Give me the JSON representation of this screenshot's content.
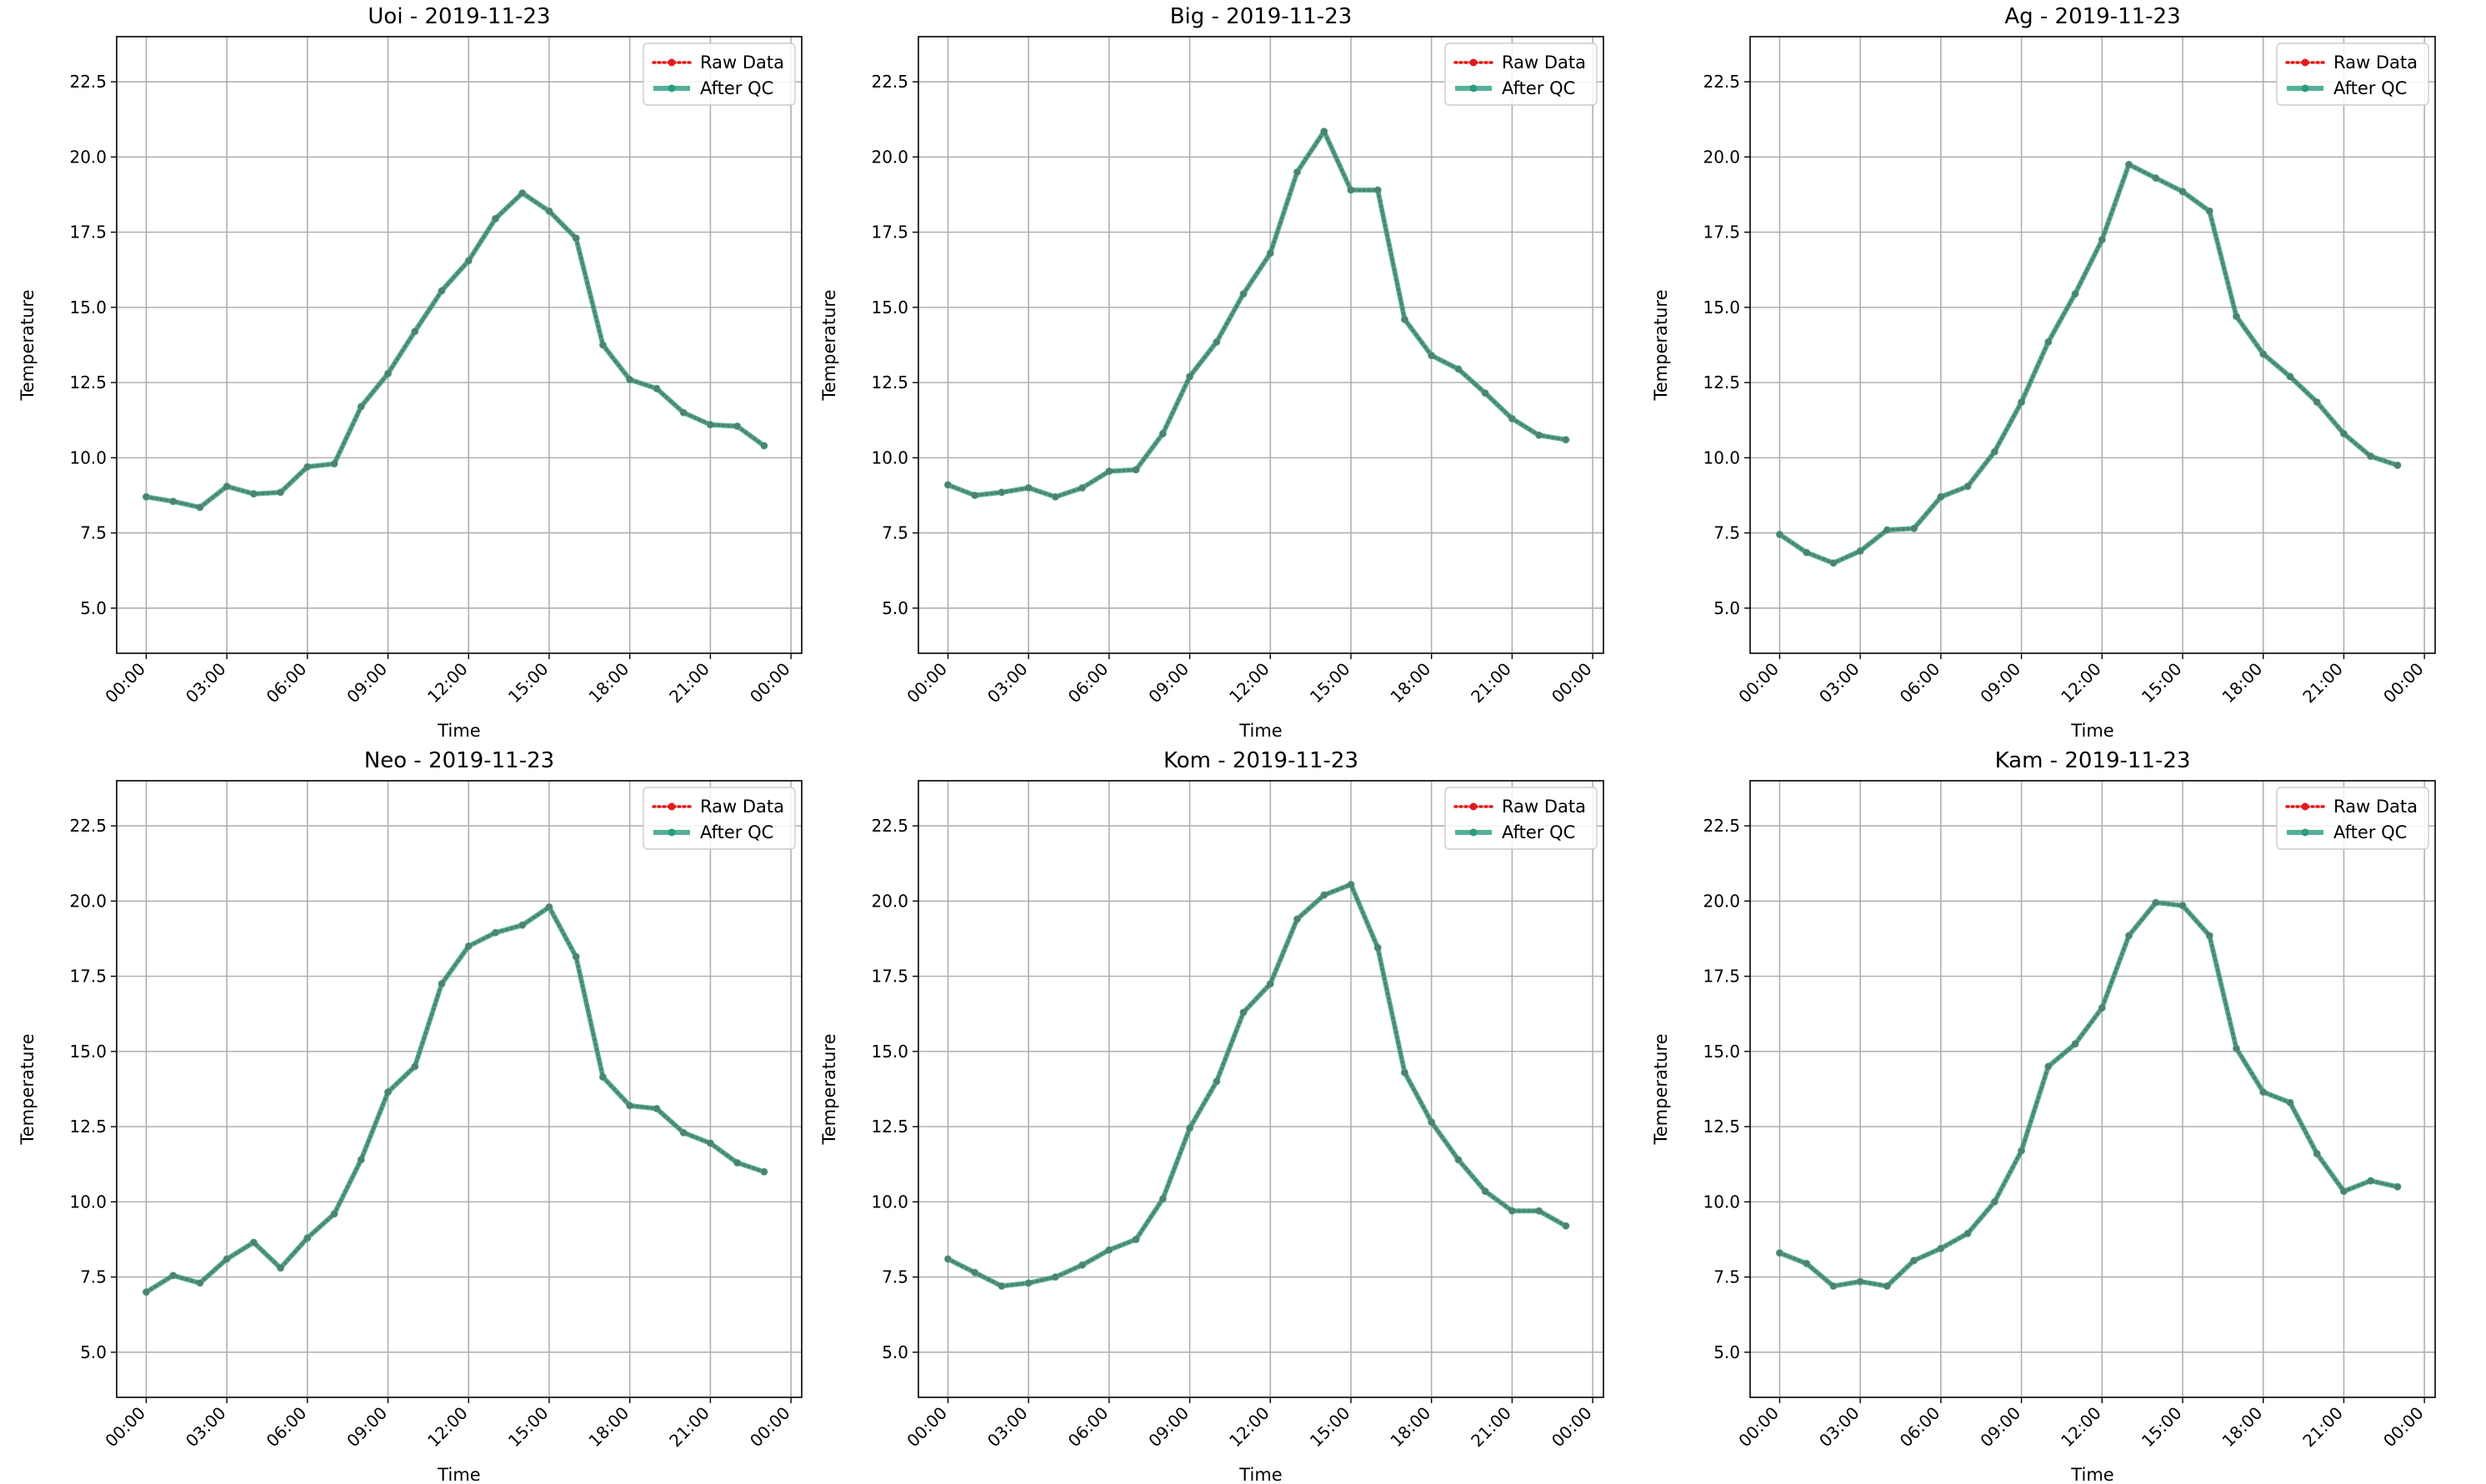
{
  "chart_data": [
    {
      "type": "line",
      "title": "Uoi - 2019-11-23",
      "xlabel": "Time",
      "ylabel": "Temperature",
      "x": [
        0,
        1,
        2,
        3,
        4,
        5,
        6,
        7,
        8,
        9,
        10,
        11,
        12,
        13,
        14,
        15,
        16,
        17,
        18,
        19,
        20,
        21,
        22,
        23
      ],
      "xticks": [
        "00:00",
        "03:00",
        "06:00",
        "09:00",
        "12:00",
        "15:00",
        "18:00",
        "21:00",
        "00:00"
      ],
      "yticks": [
        "5.0",
        "7.5",
        "10.0",
        "12.5",
        "15.0",
        "17.5",
        "20.0",
        "22.5"
      ],
      "ylim": [
        3.5,
        24
      ],
      "grid": true,
      "legend_position": "upper right",
      "series": [
        {
          "name": "Raw Data",
          "color": "#e41a1c",
          "style": "dotted",
          "values": [
            8.7,
            8.55,
            8.35,
            9.05,
            8.8,
            8.85,
            9.7,
            9.8,
            11.7,
            12.8,
            14.2,
            15.55,
            16.55,
            17.95,
            18.8,
            18.2,
            17.3,
            13.75,
            12.6,
            12.3,
            11.5,
            11.1,
            11.05,
            10.4
          ]
        },
        {
          "name": "After QC",
          "color": "#2a9d7e",
          "style": "solid",
          "values": [
            8.7,
            8.55,
            8.35,
            9.05,
            8.8,
            8.85,
            9.7,
            9.8,
            11.7,
            12.8,
            14.2,
            15.55,
            16.55,
            17.95,
            18.8,
            18.2,
            17.3,
            13.75,
            12.6,
            12.3,
            11.5,
            11.1,
            11.05,
            10.4
          ]
        }
      ]
    },
    {
      "type": "line",
      "title": "Big - 2019-11-23",
      "xlabel": "Time",
      "ylabel": "Temperature",
      "x": [
        0,
        1,
        2,
        3,
        4,
        5,
        6,
        7,
        8,
        9,
        10,
        11,
        12,
        13,
        14,
        15,
        16,
        17,
        18,
        19,
        20,
        21,
        22,
        23
      ],
      "xticks": [
        "00:00",
        "03:00",
        "06:00",
        "09:00",
        "12:00",
        "15:00",
        "18:00",
        "21:00",
        "00:00"
      ],
      "yticks": [
        "5.0",
        "7.5",
        "10.0",
        "12.5",
        "15.0",
        "17.5",
        "20.0",
        "22.5"
      ],
      "ylim": [
        3.5,
        24
      ],
      "grid": true,
      "legend_position": "upper right",
      "series": [
        {
          "name": "Raw Data",
          "color": "#e41a1c",
          "style": "dotted",
          "values": [
            9.1,
            8.75,
            8.85,
            9.0,
            8.7,
            9.0,
            9.55,
            9.6,
            10.8,
            12.7,
            13.85,
            15.45,
            16.8,
            19.5,
            20.85,
            18.9,
            18.9,
            14.6,
            13.4,
            12.95,
            12.15,
            11.3,
            10.75,
            10.6
          ]
        },
        {
          "name": "After QC",
          "color": "#2a9d7e",
          "style": "solid",
          "values": [
            9.1,
            8.75,
            8.85,
            9.0,
            8.7,
            9.0,
            9.55,
            9.6,
            10.8,
            12.7,
            13.85,
            15.45,
            16.8,
            19.5,
            20.85,
            18.9,
            18.9,
            14.6,
            13.4,
            12.95,
            12.15,
            11.3,
            10.75,
            10.6
          ]
        }
      ]
    },
    {
      "type": "line",
      "title": "Ag - 2019-11-23",
      "xlabel": "Time",
      "ylabel": "Temperature",
      "x": [
        0,
        1,
        2,
        3,
        4,
        5,
        6,
        7,
        8,
        9,
        10,
        11,
        12,
        13,
        14,
        15,
        16,
        17,
        18,
        19,
        20,
        21,
        22,
        23
      ],
      "xticks": [
        "00:00",
        "03:00",
        "06:00",
        "09:00",
        "12:00",
        "15:00",
        "18:00",
        "21:00",
        "00:00"
      ],
      "yticks": [
        "5.0",
        "7.5",
        "10.0",
        "12.5",
        "15.0",
        "17.5",
        "20.0",
        "22.5"
      ],
      "ylim": [
        3.5,
        24
      ],
      "grid": true,
      "legend_position": "upper right",
      "series": [
        {
          "name": "Raw Data",
          "color": "#e41a1c",
          "style": "dotted",
          "values": [
            7.45,
            6.85,
            6.5,
            6.9,
            7.6,
            7.65,
            8.7,
            9.05,
            10.2,
            11.85,
            13.85,
            15.45,
            17.25,
            19.75,
            19.3,
            18.85,
            18.2,
            14.7,
            13.45,
            12.7,
            11.85,
            10.8,
            10.05,
            9.75
          ]
        },
        {
          "name": "After QC",
          "color": "#2a9d7e",
          "style": "solid",
          "values": [
            7.45,
            6.85,
            6.5,
            6.9,
            7.6,
            7.65,
            8.7,
            9.05,
            10.2,
            11.85,
            13.85,
            15.45,
            17.25,
            19.75,
            19.3,
            18.85,
            18.2,
            14.7,
            13.45,
            12.7,
            11.85,
            10.8,
            10.05,
            9.75
          ]
        }
      ]
    },
    {
      "type": "line",
      "title": "Neo - 2019-11-23",
      "xlabel": "Time",
      "ylabel": "Temperature",
      "x": [
        0,
        1,
        2,
        3,
        4,
        5,
        6,
        7,
        8,
        9,
        10,
        11,
        12,
        13,
        14,
        15,
        16,
        17,
        18,
        19,
        20,
        21,
        22,
        23
      ],
      "xticks": [
        "00:00",
        "03:00",
        "06:00",
        "09:00",
        "12:00",
        "15:00",
        "18:00",
        "21:00",
        "00:00"
      ],
      "yticks": [
        "5.0",
        "7.5",
        "10.0",
        "12.5",
        "15.0",
        "17.5",
        "20.0",
        "22.5"
      ],
      "ylim": [
        3.5,
        24
      ],
      "grid": true,
      "legend_position": "upper right",
      "series": [
        {
          "name": "Raw Data",
          "color": "#e41a1c",
          "style": "dotted",
          "values": [
            7.0,
            7.55,
            7.3,
            8.1,
            8.65,
            7.8,
            8.8,
            9.6,
            11.4,
            13.65,
            14.5,
            17.25,
            18.5,
            18.95,
            19.2,
            19.8,
            18.15,
            14.15,
            13.2,
            13.1,
            12.3,
            11.95,
            11.3,
            11.0
          ]
        },
        {
          "name": "After QC",
          "color": "#2a9d7e",
          "style": "solid",
          "values": [
            7.0,
            7.55,
            7.3,
            8.1,
            8.65,
            7.8,
            8.8,
            9.6,
            11.4,
            13.65,
            14.5,
            17.25,
            18.5,
            18.95,
            19.2,
            19.8,
            18.15,
            14.15,
            13.2,
            13.1,
            12.3,
            11.95,
            11.3,
            11.0
          ]
        }
      ]
    },
    {
      "type": "line",
      "title": "Kom - 2019-11-23",
      "xlabel": "Time",
      "ylabel": "Temperature",
      "x": [
        0,
        1,
        2,
        3,
        4,
        5,
        6,
        7,
        8,
        9,
        10,
        11,
        12,
        13,
        14,
        15,
        16,
        17,
        18,
        19,
        20,
        21,
        22,
        23
      ],
      "xticks": [
        "00:00",
        "03:00",
        "06:00",
        "09:00",
        "12:00",
        "15:00",
        "18:00",
        "21:00",
        "00:00"
      ],
      "yticks": [
        "5.0",
        "7.5",
        "10.0",
        "12.5",
        "15.0",
        "17.5",
        "20.0",
        "22.5"
      ],
      "ylim": [
        3.5,
        24
      ],
      "grid": true,
      "legend_position": "upper right",
      "series": [
        {
          "name": "Raw Data",
          "color": "#e41a1c",
          "style": "dotted",
          "values": [
            8.1,
            7.65,
            7.2,
            7.3,
            7.5,
            7.9,
            8.4,
            8.75,
            10.1,
            12.45,
            14.0,
            16.3,
            17.25,
            19.4,
            20.2,
            20.55,
            18.45,
            14.3,
            12.65,
            11.4,
            10.35,
            9.7,
            9.7,
            9.2
          ]
        },
        {
          "name": "After QC",
          "color": "#2a9d7e",
          "style": "solid",
          "values": [
            8.1,
            7.65,
            7.2,
            7.3,
            7.5,
            7.9,
            8.4,
            8.75,
            10.1,
            12.45,
            14.0,
            16.3,
            17.25,
            19.4,
            20.2,
            20.55,
            18.45,
            14.3,
            12.65,
            11.4,
            10.35,
            9.7,
            9.7,
            9.2
          ]
        }
      ]
    },
    {
      "type": "line",
      "title": "Kam - 2019-11-23",
      "xlabel": "Time",
      "ylabel": "Temperature",
      "x": [
        0,
        1,
        2,
        3,
        4,
        5,
        6,
        7,
        8,
        9,
        10,
        11,
        12,
        13,
        14,
        15,
        16,
        17,
        18,
        19,
        20,
        21,
        22,
        23
      ],
      "xticks": [
        "00:00",
        "03:00",
        "06:00",
        "09:00",
        "12:00",
        "15:00",
        "18:00",
        "21:00",
        "00:00"
      ],
      "yticks": [
        "5.0",
        "7.5",
        "10.0",
        "12.5",
        "15.0",
        "17.5",
        "20.0",
        "22.5"
      ],
      "ylim": [
        3.5,
        24
      ],
      "grid": true,
      "legend_position": "upper right",
      "series": [
        {
          "name": "Raw Data",
          "color": "#e41a1c",
          "style": "dotted",
          "values": [
            8.3,
            7.95,
            7.2,
            7.35,
            7.2,
            8.05,
            8.45,
            8.95,
            10.0,
            11.7,
            14.5,
            15.25,
            16.45,
            18.85,
            19.95,
            19.85,
            18.85,
            15.1,
            13.65,
            13.3,
            11.6,
            10.35,
            10.7,
            10.5
          ]
        },
        {
          "name": "After QC",
          "color": "#2a9d7e",
          "style": "solid",
          "values": [
            8.3,
            7.95,
            7.2,
            7.35,
            7.2,
            8.05,
            8.45,
            8.95,
            10.0,
            11.7,
            14.5,
            15.25,
            16.45,
            18.85,
            19.95,
            19.85,
            18.85,
            15.1,
            13.65,
            13.3,
            11.6,
            10.35,
            10.7,
            10.5
          ]
        }
      ]
    }
  ]
}
